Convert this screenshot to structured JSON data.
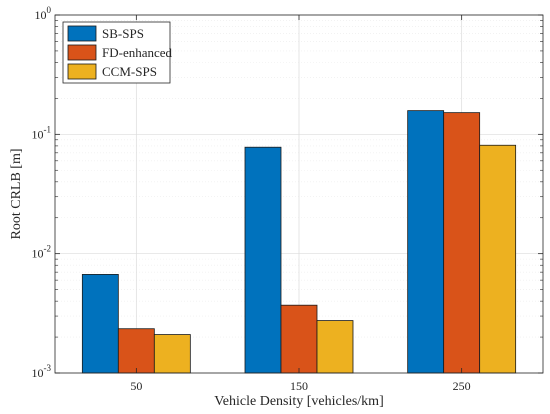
{
  "chart_data": {
    "type": "bar",
    "title": "",
    "xlabel": "Vehicle Density [vehicles/km]",
    "ylabel": "Root CRLB [m]",
    "yscale": "log",
    "ylim": [
      0.001,
      1
    ],
    "categories": [
      "50",
      "150",
      "250"
    ],
    "yticks": [
      {
        "value": 0.001,
        "base": "10",
        "exp": "-3"
      },
      {
        "value": 0.01,
        "base": "10",
        "exp": "-2"
      },
      {
        "value": 0.1,
        "base": "10",
        "exp": "-1"
      },
      {
        "value": 1,
        "base": "10",
        "exp": "0"
      }
    ],
    "grid": true,
    "legend_position": "top-left",
    "series": [
      {
        "name": "SB-SPS",
        "color": "#0072BD",
        "values": [
          0.0067,
          0.078,
          0.158
        ]
      },
      {
        "name": "FD-enhanced",
        "color": "#D95319",
        "values": [
          0.00235,
          0.0037,
          0.152
        ]
      },
      {
        "name": "CCM-SPS",
        "color": "#EDB120",
        "values": [
          0.0021,
          0.00275,
          0.081
        ]
      }
    ]
  }
}
